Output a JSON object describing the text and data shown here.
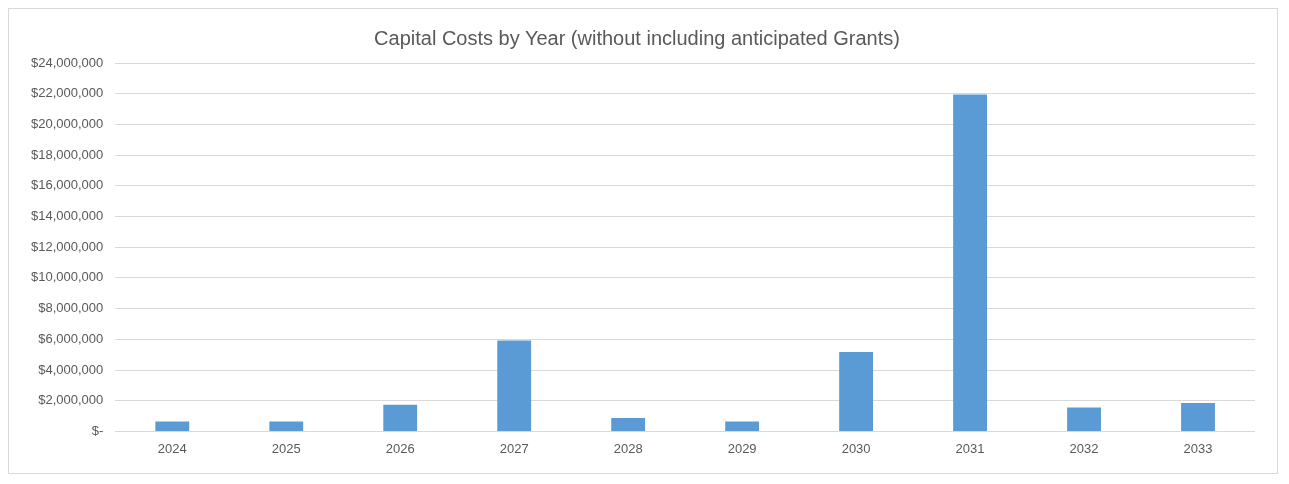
{
  "chart_data": {
    "type": "bar",
    "title": "Capital Costs by Year (without including anticipated Grants)",
    "categories": [
      "2024",
      "2025",
      "2026",
      "2027",
      "2028",
      "2029",
      "2030",
      "2031",
      "2032",
      "2033"
    ],
    "values": [
      650000,
      650000,
      1740000,
      5920000,
      870000,
      650000,
      5180000,
      21950000,
      1550000,
      1850000
    ],
    "color": "#5b9bd5",
    "ylim": [
      0,
      24000000
    ],
    "yticks": [
      {
        "value": 0,
        "label": "$-"
      },
      {
        "value": 2000000,
        "label": "$2,000,000"
      },
      {
        "value": 4000000,
        "label": "$4,000,000"
      },
      {
        "value": 6000000,
        "label": "$6,000,000"
      },
      {
        "value": 8000000,
        "label": "$8,000,000"
      },
      {
        "value": 10000000,
        "label": "$10,000,000"
      },
      {
        "value": 12000000,
        "label": "$12,000,000"
      },
      {
        "value": 14000000,
        "label": "$14,000,000"
      },
      {
        "value": 16000000,
        "label": "$16,000,000"
      },
      {
        "value": 18000000,
        "label": "$18,000,000"
      },
      {
        "value": 20000000,
        "label": "$20,000,000"
      },
      {
        "value": 22000000,
        "label": "$22,000,000"
      },
      {
        "value": 24000000,
        "label": "$24,000,000"
      }
    ],
    "grid": "y",
    "legend": false
  }
}
